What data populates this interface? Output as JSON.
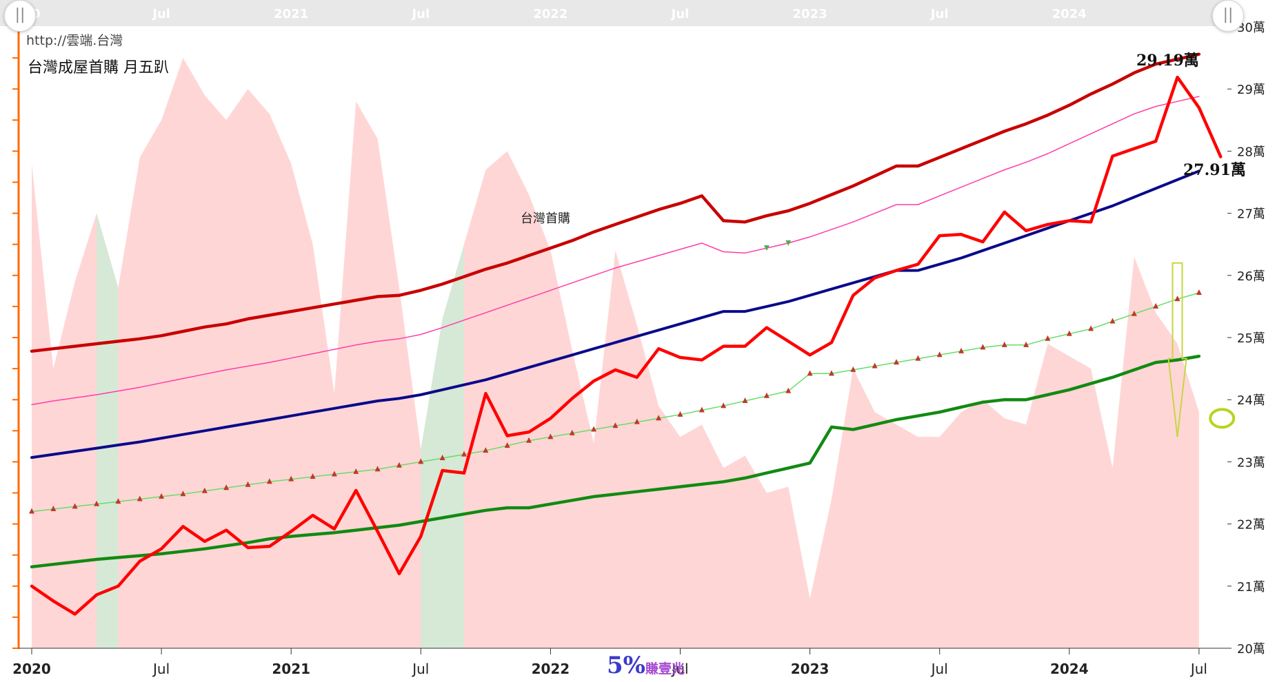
{
  "watermark": "http://雲端.台灣",
  "title": "台灣成屋首購 月五趴",
  "series_label": "台灣首購",
  "brand": {
    "pct": "5%",
    "text": "賺壹兆"
  },
  "callouts": {
    "peak": "29.19萬",
    "last": "27.91萬"
  },
  "slider": {
    "left_handle": "||",
    "right_handle": "||"
  },
  "colors": {
    "upper_band": "#c80000",
    "upper_thin": "#ff3ca8",
    "mid_line": "#0a0a8a",
    "lower_dotted": "#66dd66",
    "lower_dotted_marker": "#c0392b",
    "lower_band": "#128a12",
    "price": "#ff0000",
    "area_pink": "#ffd6d6",
    "area_green": "#d6e8d6",
    "axis": "#ff6a00",
    "navigator_bg": "#e8e8e8"
  },
  "chart_data": {
    "type": "line",
    "title": "台灣成屋首購 月五趴",
    "y_unit": "萬",
    "ylim": [
      20,
      30
    ],
    "y_ticks": [
      "20萬",
      "21萬",
      "22萬",
      "23萬",
      "24萬",
      "25萬",
      "26萬",
      "27萬",
      "28萬",
      "29萬",
      "30萬"
    ],
    "x_range": [
      "2020-01",
      "2024-07"
    ],
    "x_ticks": [
      {
        "month": 0,
        "label": "2020",
        "bold": true
      },
      {
        "month": 6,
        "label": "Jul",
        "bold": false
      },
      {
        "month": 12,
        "label": "2021",
        "bold": true
      },
      {
        "month": 18,
        "label": "Jul",
        "bold": false
      },
      {
        "month": 24,
        "label": "2022",
        "bold": true
      },
      {
        "month": 30,
        "label": "Jul",
        "bold": false
      },
      {
        "month": 36,
        "label": "2023",
        "bold": true
      },
      {
        "month": 42,
        "label": "Jul",
        "bold": false
      },
      {
        "month": 48,
        "label": "2024",
        "bold": true
      },
      {
        "month": 54,
        "label": "Jul",
        "bold": false
      }
    ],
    "navigator_ticks": [
      {
        "month": 6,
        "label": "Jul"
      },
      {
        "month": 12,
        "label": "2021"
      },
      {
        "month": 18,
        "label": "Jul"
      },
      {
        "month": 24,
        "label": "2022"
      },
      {
        "month": 30,
        "label": "Jul"
      },
      {
        "month": 36,
        "label": "2023"
      },
      {
        "month": 42,
        "label": "Jul"
      },
      {
        "month": 48,
        "label": "2024"
      }
    ],
    "navigator_partial_label": "20",
    "legend": "none",
    "grid": false,
    "series": [
      {
        "key": "upper",
        "width": 4.5,
        "values": [
          24.78,
          24.82,
          24.86,
          24.9,
          24.94,
          24.98,
          25.03,
          25.1,
          25.17,
          25.22,
          25.3,
          25.36,
          25.42,
          25.48,
          25.54,
          25.6,
          25.66,
          25.68,
          25.76,
          25.86,
          25.98,
          26.1,
          26.2,
          26.32,
          26.44,
          26.56,
          26.7,
          26.82,
          26.94,
          27.06,
          27.16,
          27.28,
          26.88,
          26.86,
          26.96,
          27.04,
          27.16,
          27.3,
          27.44,
          27.6,
          27.76,
          27.76,
          27.9,
          28.04,
          28.18,
          28.32,
          28.44,
          28.58,
          28.74,
          28.92,
          29.08,
          29.26,
          29.4,
          29.48,
          29.56
        ]
      },
      {
        "key": "upper_thin",
        "width": 1.5,
        "values": [
          23.92,
          23.98,
          24.03,
          24.08,
          24.14,
          24.2,
          24.27,
          24.34,
          24.41,
          24.48,
          24.54,
          24.6,
          24.67,
          24.74,
          24.81,
          24.88,
          24.94,
          24.98,
          25.05,
          25.16,
          25.28,
          25.4,
          25.52,
          25.64,
          25.76,
          25.88,
          26.0,
          26.12,
          26.22,
          26.32,
          26.42,
          26.52,
          26.38,
          26.36,
          26.44,
          26.52,
          26.62,
          26.74,
          26.86,
          27.0,
          27.14,
          27.14,
          27.28,
          27.42,
          27.56,
          27.7,
          27.82,
          27.96,
          28.12,
          28.28,
          28.44,
          28.6,
          28.72,
          28.8,
          28.88
        ]
      },
      {
        "key": "mid",
        "width": 4,
        "values": [
          23.07,
          23.12,
          23.17,
          23.22,
          23.27,
          23.32,
          23.38,
          23.44,
          23.5,
          23.56,
          23.62,
          23.68,
          23.74,
          23.8,
          23.86,
          23.92,
          23.98,
          24.02,
          24.08,
          24.16,
          24.24,
          24.32,
          24.42,
          24.52,
          24.62,
          24.72,
          24.82,
          24.92,
          25.02,
          25.12,
          25.22,
          25.32,
          25.42,
          25.42,
          25.5,
          25.58,
          25.68,
          25.78,
          25.88,
          25.98,
          26.08,
          26.08,
          26.18,
          26.28,
          26.4,
          26.52,
          26.64,
          26.76,
          26.88,
          27.0,
          27.12,
          27.26,
          27.4,
          27.54,
          27.68
        ]
      },
      {
        "key": "lower_dotted",
        "width": 1.5,
        "markers": true,
        "values": [
          22.2,
          22.24,
          22.28,
          22.32,
          22.36,
          22.4,
          22.44,
          22.48,
          22.53,
          22.58,
          22.63,
          22.68,
          22.72,
          22.76,
          22.8,
          22.84,
          22.88,
          22.94,
          23.0,
          23.06,
          23.12,
          23.18,
          23.26,
          23.34,
          23.4,
          23.46,
          23.52,
          23.58,
          23.64,
          23.7,
          23.76,
          23.83,
          23.9,
          23.98,
          24.06,
          24.14,
          24.42,
          24.42,
          24.48,
          24.54,
          24.6,
          24.66,
          24.72,
          24.78,
          24.84,
          24.88,
          24.88,
          24.98,
          25.06,
          25.14,
          25.26,
          25.38,
          25.5,
          25.62,
          25.72
        ]
      },
      {
        "key": "lower",
        "width": 4.5,
        "values": [
          21.31,
          21.35,
          21.39,
          21.43,
          21.46,
          21.49,
          21.52,
          21.56,
          21.6,
          21.65,
          21.7,
          21.76,
          21.8,
          21.83,
          21.86,
          21.9,
          21.94,
          21.98,
          22.04,
          22.1,
          22.16,
          22.22,
          22.26,
          22.26,
          22.32,
          22.38,
          22.44,
          22.48,
          22.52,
          22.56,
          22.6,
          22.64,
          22.68,
          22.74,
          22.82,
          22.9,
          22.98,
          23.56,
          23.52,
          23.6,
          23.68,
          23.74,
          23.8,
          23.88,
          23.96,
          24.0,
          24.0,
          24.08,
          24.16,
          24.26,
          24.36,
          24.48,
          24.6,
          24.64,
          24.7
        ]
      },
      {
        "key": "price",
        "width": 4.5,
        "values": [
          21.0,
          20.76,
          20.55,
          20.86,
          21.0,
          21.4,
          21.6,
          21.96,
          21.72,
          21.9,
          21.62,
          21.64,
          21.88,
          22.14,
          21.92,
          22.54,
          21.88,
          21.2,
          21.8,
          22.86,
          22.82,
          24.1,
          23.42,
          23.48,
          23.7,
          24.02,
          24.3,
          24.48,
          24.36,
          24.82,
          24.68,
          24.64,
          24.86,
          24.86,
          25.16,
          24.94,
          24.72,
          24.92,
          25.68,
          25.96,
          26.08,
          26.18,
          26.64,
          26.66,
          26.54,
          27.02,
          26.72,
          26.82,
          26.88,
          26.86,
          27.92,
          28.04,
          28.16,
          29.19,
          28.7,
          27.91
        ]
      }
    ],
    "price_markers": [
      {
        "series": "mid_upper_thin",
        "months": [
          34,
          35
        ],
        "kind": "down_triangle"
      }
    ],
    "area_pink_values": [
      27.8,
      24.5,
      25.9,
      27.0,
      25.8,
      27.9,
      28.5,
      29.5,
      28.9,
      28.5,
      29.0,
      28.6,
      27.8,
      26.5,
      24.1,
      28.8,
      28.2,
      25.8,
      23.2,
      24.2,
      26.5,
      27.7,
      28.0,
      27.3,
      26.4,
      24.8,
      23.3,
      26.4,
      25.2,
      23.9,
      23.4,
      23.6,
      22.9,
      23.1,
      22.5,
      22.6,
      20.8,
      22.4,
      24.5,
      23.8,
      23.6,
      23.4,
      23.4,
      23.8,
      24.0,
      23.7,
      23.6,
      24.9,
      24.7,
      24.5,
      22.9,
      26.3,
      25.4,
      24.9,
      23.8
    ],
    "green_bands": [
      {
        "from": 3,
        "to": 4,
        "top": [
          27.0,
          25.8
        ]
      },
      {
        "from": 18,
        "to": 20,
        "top": [
          23.2,
          25.3,
          26.5
        ]
      }
    ],
    "arrow": {
      "month": 53,
      "from": 26.2,
      "to": 23.4
    },
    "target_circle": {
      "month": 55,
      "value": 23.7
    }
  }
}
